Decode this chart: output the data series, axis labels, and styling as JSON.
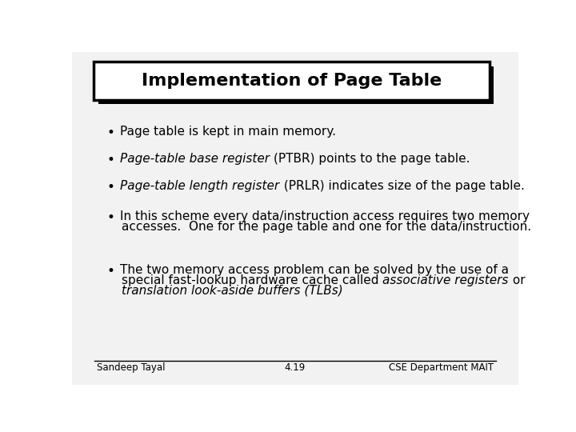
{
  "title": "Implementation of Page Table",
  "background_color": "#ffffff",
  "slide_bg": "#f2f2f2",
  "bullets": [
    {
      "lines": [
        [
          {
            "text": "Page table is kept in main memory.",
            "italic": false,
            "bold": false
          }
        ]
      ]
    },
    {
      "lines": [
        [
          {
            "text": "Page-table base register ",
            "italic": true,
            "bold": false
          },
          {
            "text": "(PTBR) points to the page table.",
            "italic": false,
            "bold": false
          }
        ]
      ]
    },
    {
      "lines": [
        [
          {
            "text": "Page-table length register",
            "italic": true,
            "bold": false
          },
          {
            "text": " (PRLR) indicates size of the page table.",
            "italic": false,
            "bold": false
          }
        ]
      ]
    },
    {
      "lines": [
        [
          {
            "text": "In this scheme every data/instruction access requires two memory",
            "italic": false,
            "bold": false
          }
        ],
        [
          {
            "text": "accesses.  One for the page table and one for the data/instruction.",
            "italic": false,
            "bold": false
          }
        ]
      ]
    },
    {
      "lines": [
        [
          {
            "text": "The two memory access problem can be solved by the use of a",
            "italic": false,
            "bold": false
          }
        ],
        [
          {
            "text": "special fast-lookup hardware cache called ",
            "italic": false,
            "bold": false
          },
          {
            "text": "associative registers",
            "italic": true,
            "bold": false
          },
          {
            "text": " or",
            "italic": false,
            "bold": false
          }
        ],
        [
          {
            "text": "translation look-aside buffers (TLBs)",
            "italic": true,
            "bold": false
          }
        ]
      ]
    }
  ],
  "footer_left": "Sandeep Tayal",
  "footer_center": "4.19",
  "footer_right": "CSE Department MAIT",
  "title_fontsize": 16,
  "bullet_fontsize": 11,
  "footer_fontsize": 8.5
}
